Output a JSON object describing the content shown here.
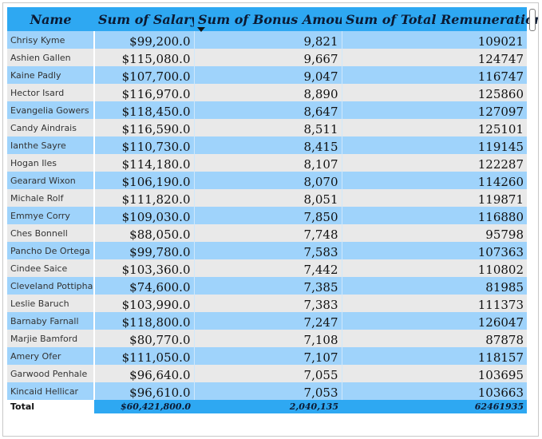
{
  "table": {
    "headers": {
      "name": "Name",
      "salary": "Sum of Salary",
      "bonus": "Sum of Bonus Amount",
      "total": "Sum of Total Remuneration"
    },
    "sort": {
      "column": "bonus",
      "direction": "descending",
      "icon": "sort-descending-icon"
    },
    "rows": [
      {
        "name": "Chrisy Kyme",
        "salary": "$99,200.0",
        "bonus": "9,821",
        "total": "109021"
      },
      {
        "name": "Ashien Gallen",
        "salary": "$115,080.0",
        "bonus": "9,667",
        "total": "124747"
      },
      {
        "name": "Kaine Padly",
        "salary": "$107,700.0",
        "bonus": "9,047",
        "total": "116747"
      },
      {
        "name": "Hector Isard",
        "salary": "$116,970.0",
        "bonus": "8,890",
        "total": "125860"
      },
      {
        "name": "Evangelia Gowers",
        "salary": "$118,450.0",
        "bonus": "8,647",
        "total": "127097"
      },
      {
        "name": "Candy Aindrais",
        "salary": "$116,590.0",
        "bonus": "8,511",
        "total": "125101"
      },
      {
        "name": "Ianthe Sayre",
        "salary": "$110,730.0",
        "bonus": "8,415",
        "total": "119145"
      },
      {
        "name": "Hogan Iles",
        "salary": "$114,180.0",
        "bonus": "8,107",
        "total": "122287"
      },
      {
        "name": "Gearard Wixon",
        "salary": "$106,190.0",
        "bonus": "8,070",
        "total": "114260"
      },
      {
        "name": "Michale Rolf",
        "salary": "$111,820.0",
        "bonus": "8,051",
        "total": "119871"
      },
      {
        "name": "Emmye Corry",
        "salary": "$109,030.0",
        "bonus": "7,850",
        "total": "116880"
      },
      {
        "name": "Ches Bonnell",
        "salary": "$88,050.0",
        "bonus": "7,748",
        "total": "95798"
      },
      {
        "name": "Pancho De Ortega",
        "salary": "$99,780.0",
        "bonus": "7,583",
        "total": "107363"
      },
      {
        "name": "Cindee Saice",
        "salary": "$103,360.0",
        "bonus": "7,442",
        "total": "110802"
      },
      {
        "name": "Cleveland Pottiphar",
        "salary": "$74,600.0",
        "bonus": "7,385",
        "total": "81985"
      },
      {
        "name": "Leslie Baruch",
        "salary": "$103,990.0",
        "bonus": "7,383",
        "total": "111373"
      },
      {
        "name": "Barnaby Farnall",
        "salary": "$118,800.0",
        "bonus": "7,247",
        "total": "126047"
      },
      {
        "name": "Marjie Bamford",
        "salary": "$80,770.0",
        "bonus": "7,108",
        "total": "87878"
      },
      {
        "name": "Amery Ofer",
        "salary": "$111,050.0",
        "bonus": "7,107",
        "total": "118157"
      },
      {
        "name": "Garwood Penhale",
        "salary": "$96,640.0",
        "bonus": "7,055",
        "total": "103695"
      },
      {
        "name": "Kincaid Hellicar",
        "salary": "$96,610.0",
        "bonus": "7,053",
        "total": "103663"
      }
    ],
    "totals": {
      "label": "Total",
      "salary": "$60,421,800.0",
      "bonus": "2,040,135",
      "total": "62461935"
    }
  },
  "colors": {
    "header_bg": "#2ea8f2",
    "row_odd_bg": "#9fd3fb",
    "row_even_bg": "#e9e9e9"
  }
}
